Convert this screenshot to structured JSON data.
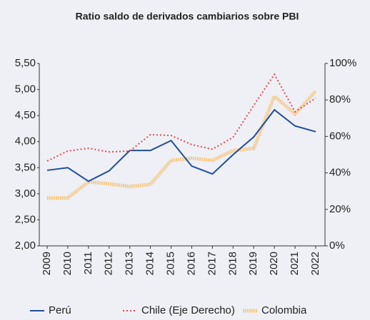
{
  "chart_data": {
    "type": "line",
    "title": "Ratio saldo de derivados cambiarios sobre PBI",
    "categories": [
      "2009",
      "2010",
      "2011",
      "2012",
      "2013",
      "2014",
      "2015",
      "2016",
      "2017",
      "2018",
      "2019",
      "2020",
      "2021",
      "2022"
    ],
    "series": [
      {
        "name": "Perú",
        "color": "#1f4e99",
        "values": [
          3.45,
          3.5,
          3.24,
          3.44,
          3.83,
          3.83,
          4.02,
          3.53,
          3.38,
          3.75,
          4.09,
          4.61,
          4.3,
          4.19
        ]
      },
      {
        "name": "Chile (Eje Derecho)",
        "color": "#e8474b",
        "axis": "y2",
        "values": [
          46.5,
          52,
          53.5,
          51.5,
          52,
          61,
          60.5,
          55.5,
          53,
          59.5,
          77,
          94,
          73.5,
          81
        ]
      },
      {
        "name": "Colombia",
        "color": "#f5c98a",
        "values": [
          2.92,
          2.92,
          3.23,
          3.19,
          3.14,
          3.18,
          3.64,
          3.68,
          3.64,
          3.83,
          3.87,
          4.87,
          4.53,
          4.97
        ]
      }
    ],
    "ylim": [
      2,
      5.5
    ],
    "yticks": [
      {
        "value": 2,
        "label": "2,00"
      },
      {
        "value": 2.5,
        "label": "2,50"
      },
      {
        "value": 3,
        "label": "3,00"
      },
      {
        "value": 3.5,
        "label": "3,50"
      },
      {
        "value": 4,
        "label": "4,00"
      },
      {
        "value": 4.5,
        "label": "4,50"
      },
      {
        "value": 5,
        "label": "5,00"
      },
      {
        "value": 5.5,
        "label": "5,50"
      }
    ],
    "y2lim": [
      0,
      100
    ],
    "y2ticks": [
      {
        "value": 0,
        "label": "0%"
      },
      {
        "value": 20,
        "label": "20%"
      },
      {
        "value": 40,
        "label": "40%"
      },
      {
        "value": 60,
        "label": "60%"
      },
      {
        "value": 80,
        "label": "80%"
      },
      {
        "value": 100,
        "label": "100%"
      }
    ],
    "grid": false,
    "legend": "bottom"
  }
}
